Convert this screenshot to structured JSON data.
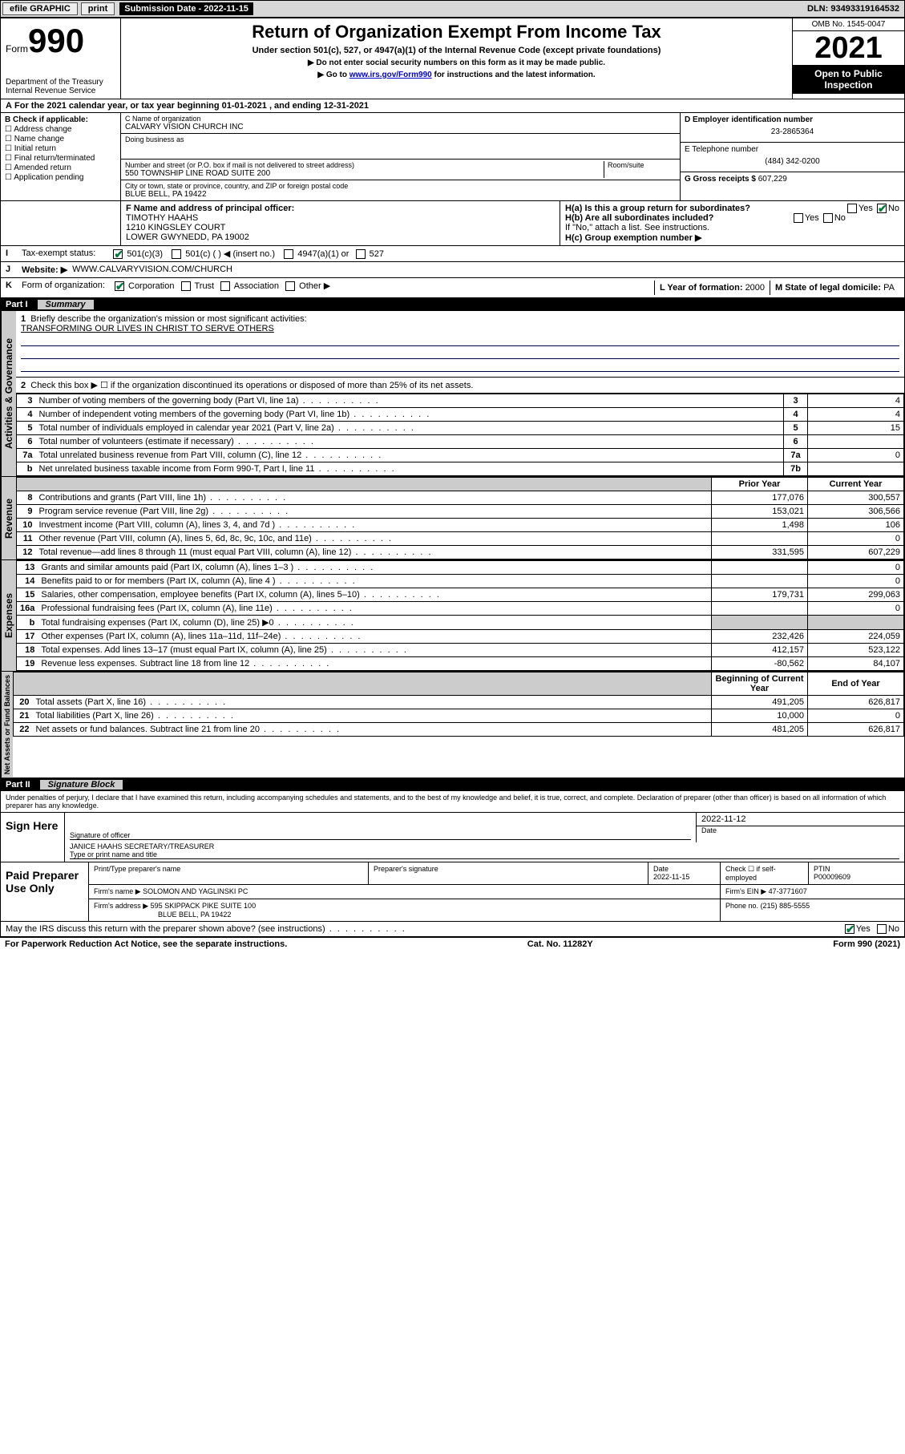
{
  "topbar": {
    "efile": "efile GRAPHIC",
    "print": "print",
    "sub_label": "Submission Date - 2022-11-15",
    "dln": "DLN: 93493319164532"
  },
  "header": {
    "form_word": "Form",
    "form_num": "990",
    "dept": "Department of the Treasury",
    "irs": "Internal Revenue Service",
    "title": "Return of Organization Exempt From Income Tax",
    "sub": "Under section 501(c), 527, or 4947(a)(1) of the Internal Revenue Code (except private foundations)",
    "note1": "▶ Do not enter social security numbers on this form as it may be made public.",
    "note2_pre": "▶ Go to ",
    "note2_link": "www.irs.gov/Form990",
    "note2_post": " for instructions and the latest information.",
    "omb": "OMB No. 1545-0047",
    "year": "2021",
    "inspect1": "Open to Public",
    "inspect2": "Inspection"
  },
  "sectA": {
    "text": "For the 2021 calendar year, or tax year beginning 01-01-2021   , and ending 12-31-2021",
    "prefix": "A"
  },
  "blockB": {
    "title": "B Check if applicable:",
    "items": [
      "Address change",
      "Name change",
      "Initial return",
      "Final return/terminated",
      "Amended return",
      "Application pending"
    ]
  },
  "blockC": {
    "name_lbl": "C Name of organization",
    "name": "CALVARY VISION CHURCH INC",
    "dba_lbl": "Doing business as",
    "dba": "",
    "street_lbl": "Number and street (or P.O. box if mail is not delivered to street address)",
    "room_lbl": "Room/suite",
    "street": "550 TOWNSHIP LINE ROAD SUITE 200",
    "city_lbl": "City or town, state or province, country, and ZIP or foreign postal code",
    "city": "BLUE BELL, PA  19422"
  },
  "blockD": {
    "d_lbl": "D Employer identification number",
    "d_val": "23-2865364",
    "e_lbl": "E Telephone number",
    "e_val": "(484) 342-0200",
    "g_lbl": "G Gross receipts $",
    "g_val": "607,229"
  },
  "blockF": {
    "lbl": "F Name and address of principal officer:",
    "line1": "TIMOTHY HAAHS",
    "line2": "1210 KINGSLEY COURT",
    "line3": "LOWER GWYNEDD, PA  19002"
  },
  "blockH": {
    "ha": "H(a)  Is this a group return for subordinates?",
    "hb": "H(b)  Are all subordinates included?",
    "hb_note": "If \"No,\" attach a list. See instructions.",
    "hc": "H(c)  Group exemption number ▶",
    "yes": "Yes",
    "no": "No"
  },
  "rowI": {
    "lbl": "I",
    "text": "Tax-exempt status:",
    "opts": [
      "501(c)(3)",
      "501(c) (  ) ◀ (insert no.)",
      "4947(a)(1) or",
      "527"
    ],
    "checked": 0
  },
  "rowJ": {
    "lbl": "J",
    "text": "Website: ▶",
    "val": "WWW.CALVARYVISION.COM/CHURCH"
  },
  "rowK": {
    "lbl": "K",
    "text": "Form of organization:",
    "opts": [
      "Corporation",
      "Trust",
      "Association",
      "Other ▶"
    ],
    "checked": 0,
    "l_lbl": "L Year of formation:",
    "l_val": "2000",
    "m_lbl": "M State of legal domicile:",
    "m_val": "PA"
  },
  "part1": {
    "num": "Part I",
    "title": "Summary",
    "activ_label": "Activities & Governance",
    "rev_label": "Revenue",
    "exp_label": "Expenses",
    "net_label": "Net Assets or Fund Balances",
    "line1": "Briefly describe the organization's mission or most significant activities:",
    "mission": "TRANSFORMING OUR LIVES IN CHRIST TO SERVE OTHERS",
    "line2": "Check this box ▶ ☐  if the organization discontinued its operations or disposed of more than 25% of its net assets.",
    "rows_gov": [
      {
        "n": "3",
        "t": "Number of voting members of the governing body (Part VI, line 1a)",
        "box": "3",
        "v": "4"
      },
      {
        "n": "4",
        "t": "Number of independent voting members of the governing body (Part VI, line 1b)",
        "box": "4",
        "v": "4"
      },
      {
        "n": "5",
        "t": "Total number of individuals employed in calendar year 2021 (Part V, line 2a)",
        "box": "5",
        "v": "15"
      },
      {
        "n": "6",
        "t": "Total number of volunteers (estimate if necessary)",
        "box": "6",
        "v": ""
      },
      {
        "n": "7a",
        "t": "Total unrelated business revenue from Part VIII, column (C), line 12",
        "box": "7a",
        "v": "0"
      },
      {
        "n": "b",
        "t": "Net unrelated business taxable income from Form 990-T, Part I, line 11",
        "box": "7b",
        "v": ""
      }
    ],
    "col_prior": "Prior Year",
    "col_curr": "Current Year",
    "col_beg": "Beginning of Current Year",
    "col_end": "End of Year",
    "rows_rev": [
      {
        "n": "8",
        "t": "Contributions and grants (Part VIII, line 1h)",
        "p": "177,076",
        "c": "300,557"
      },
      {
        "n": "9",
        "t": "Program service revenue (Part VIII, line 2g)",
        "p": "153,021",
        "c": "306,566"
      },
      {
        "n": "10",
        "t": "Investment income (Part VIII, column (A), lines 3, 4, and 7d )",
        "p": "1,498",
        "c": "106"
      },
      {
        "n": "11",
        "t": "Other revenue (Part VIII, column (A), lines 5, 6d, 8c, 9c, 10c, and 11e)",
        "p": "",
        "c": "0"
      },
      {
        "n": "12",
        "t": "Total revenue—add lines 8 through 11 (must equal Part VIII, column (A), line 12)",
        "p": "331,595",
        "c": "607,229"
      }
    ],
    "rows_exp": [
      {
        "n": "13",
        "t": "Grants and similar amounts paid (Part IX, column (A), lines 1–3 )",
        "p": "",
        "c": "0"
      },
      {
        "n": "14",
        "t": "Benefits paid to or for members (Part IX, column (A), line 4 )",
        "p": "",
        "c": "0"
      },
      {
        "n": "15",
        "t": "Salaries, other compensation, employee benefits (Part IX, column (A), lines 5–10)",
        "p": "179,731",
        "c": "299,063"
      },
      {
        "n": "16a",
        "t": "Professional fundraising fees (Part IX, column (A), line 11e)",
        "p": "",
        "c": "0"
      },
      {
        "n": "b",
        "t": "Total fundraising expenses (Part IX, column (D), line 25) ▶0",
        "p": "shade",
        "c": "shade"
      },
      {
        "n": "17",
        "t": "Other expenses (Part IX, column (A), lines 11a–11d, 11f–24e)",
        "p": "232,426",
        "c": "224,059"
      },
      {
        "n": "18",
        "t": "Total expenses. Add lines 13–17 (must equal Part IX, column (A), line 25)",
        "p": "412,157",
        "c": "523,122"
      },
      {
        "n": "19",
        "t": "Revenue less expenses. Subtract line 18 from line 12",
        "p": "-80,562",
        "c": "84,107"
      }
    ],
    "rows_net": [
      {
        "n": "20",
        "t": "Total assets (Part X, line 16)",
        "p": "491,205",
        "c": "626,817"
      },
      {
        "n": "21",
        "t": "Total liabilities (Part X, line 26)",
        "p": "10,000",
        "c": "0"
      },
      {
        "n": "22",
        "t": "Net assets or fund balances. Subtract line 21 from line 20",
        "p": "481,205",
        "c": "626,817"
      }
    ]
  },
  "part2": {
    "num": "Part II",
    "title": "Signature Block",
    "penalty": "Under penalties of perjury, I declare that I have examined this return, including accompanying schedules and statements, and to the best of my knowledge and belief, it is true, correct, and complete. Declaration of preparer (other than officer) is based on all information of which preparer has any knowledge.",
    "sign_here": "Sign Here",
    "sig_officer": "Signature of officer",
    "sig_date": "Date",
    "sig_date_val": "2022-11-12",
    "sig_name": "JANICE HAAHS SECRETARY/TREASURER",
    "sig_name_lbl": "Type or print name and title",
    "paid": "Paid Preparer Use Only",
    "prep_name_lbl": "Print/Type preparer's name",
    "prep_sig_lbl": "Preparer's signature",
    "prep_date_lbl": "Date",
    "prep_date": "2022-11-15",
    "prep_check_lbl": "Check ☐ if self-employed",
    "ptin_lbl": "PTIN",
    "ptin": "P00009609",
    "firm_name_lbl": "Firm's name    ▶",
    "firm_name": "SOLOMON AND YAGLINSKI PC",
    "firm_ein_lbl": "Firm's EIN ▶",
    "firm_ein": "47-3771607",
    "firm_addr_lbl": "Firm's address ▶",
    "firm_addr1": "595 SKIPPACK PIKE SUITE 100",
    "firm_addr2": "BLUE BELL, PA  19422",
    "phone_lbl": "Phone no.",
    "phone": "(215) 885-5555",
    "may_irs": "May the IRS discuss this return with the preparer shown above? (see instructions)",
    "yes": "Yes",
    "no": "No"
  },
  "footer": {
    "left": "For Paperwork Reduction Act Notice, see the separate instructions.",
    "mid": "Cat. No. 11282Y",
    "right": "Form 990 (2021)"
  }
}
